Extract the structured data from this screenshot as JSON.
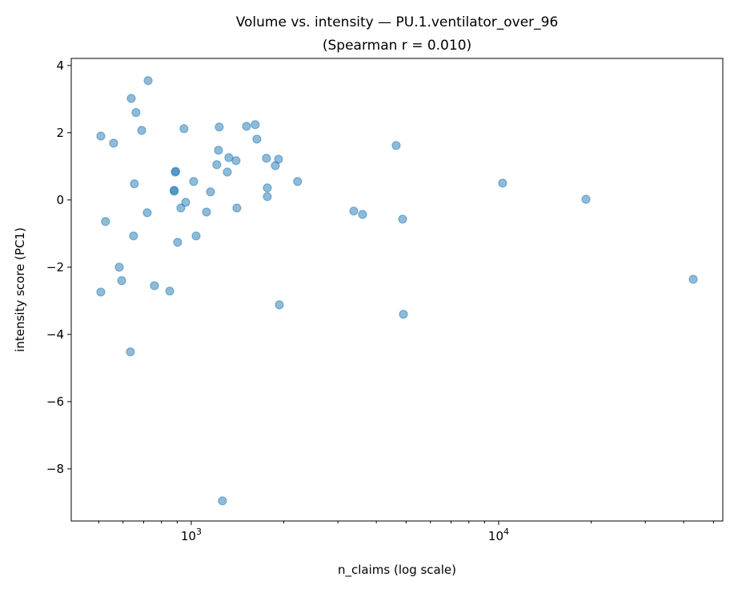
{
  "chart_data": {
    "type": "scatter",
    "title": "Volume vs. intensity — PU.1.ventilator_over_96",
    "subtitle": "(Spearman r = 0.010)",
    "xlabel": "n_claims (log scale)",
    "ylabel": "intensity score (PC1)",
    "xscale": "log",
    "xlim": [
      407,
      53600
    ],
    "ylim": [
      -9.55,
      4.21
    ],
    "xticks": [
      {
        "value": 1000,
        "label": "10^3"
      },
      {
        "value": 10000,
        "label": "10^4"
      }
    ],
    "yticks": [
      4,
      2,
      0,
      -2,
      -4,
      -6,
      -8
    ],
    "ytick_labels": [
      "4",
      "2",
      "0",
      "−2",
      "−4",
      "−6",
      "−8"
    ],
    "grid": false,
    "color": "#1f77b4",
    "alpha": 0.5,
    "points": [
      [
        508,
        1.9
      ],
      [
        559,
        1.69
      ],
      [
        638,
        3.02
      ],
      [
        724,
        3.55
      ],
      [
        661,
        2.6
      ],
      [
        690,
        2.07
      ],
      [
        947,
        2.12
      ],
      [
        1233,
        2.17
      ],
      [
        1513,
        2.19
      ],
      [
        1615,
        2.24
      ],
      [
        1635,
        1.81
      ],
      [
        1226,
        1.48
      ],
      [
        1325,
        1.26
      ],
      [
        1211,
        1.05
      ],
      [
        1399,
        1.17
      ],
      [
        1310,
        0.83
      ],
      [
        1756,
        1.24
      ],
      [
        1922,
        1.21
      ],
      [
        1877,
        1.02
      ],
      [
        887,
        0.83
      ],
      [
        890,
        0.85
      ],
      [
        880,
        0.26
      ],
      [
        880,
        0.29
      ],
      [
        653,
        0.48
      ],
      [
        1018,
        0.55
      ],
      [
        1155,
        0.24
      ],
      [
        959,
        -0.07
      ],
      [
        925,
        -0.24
      ],
      [
        719,
        -0.38
      ],
      [
        1121,
        -0.36
      ],
      [
        1407,
        -0.24
      ],
      [
        1768,
        0.36
      ],
      [
        1768,
        0.1
      ],
      [
        2218,
        0.55
      ],
      [
        526,
        -0.64
      ],
      [
        649,
        -1.07
      ],
      [
        903,
        -1.26
      ],
      [
        1037,
        -1.07
      ],
      [
        583,
        -2.0
      ],
      [
        594,
        -2.4
      ],
      [
        508,
        -2.74
      ],
      [
        759,
        -2.55
      ],
      [
        851,
        -2.71
      ],
      [
        634,
        -4.52
      ],
      [
        1935,
        -3.12
      ],
      [
        1263,
        -8.95
      ],
      [
        3378,
        -0.33
      ],
      [
        3609,
        -0.43
      ],
      [
        4641,
        1.62
      ],
      [
        4870,
        -0.57
      ],
      [
        4900,
        -3.4
      ],
      [
        10300,
        0.5
      ],
      [
        19230,
        0.02
      ],
      [
        42950,
        -2.36
      ]
    ]
  }
}
